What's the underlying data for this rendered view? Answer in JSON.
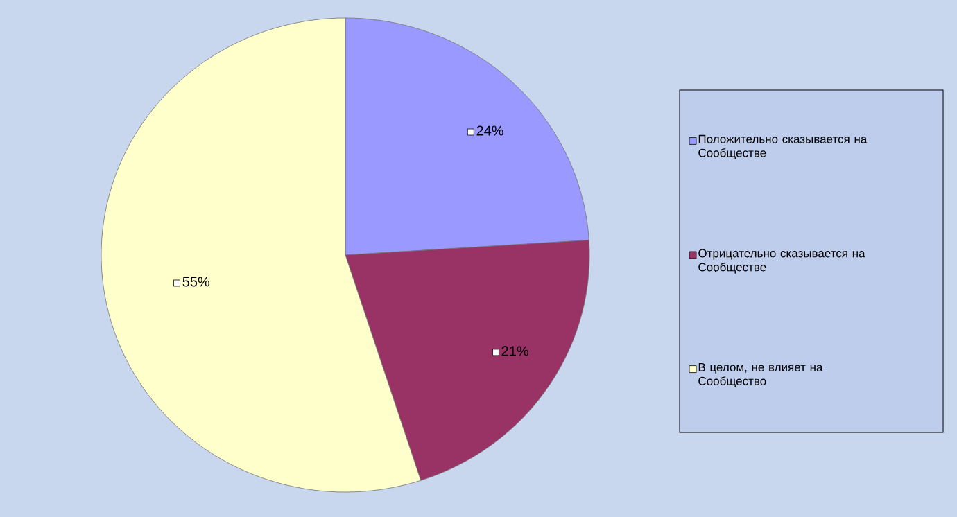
{
  "chart_data": {
    "type": "pie",
    "categories": [
      "Положительно сказывается на Сообществе",
      "Отрицательно сказывается на Сообществе",
      "В целом, не влияет на Сообщество"
    ],
    "values": [
      24,
      21,
      55
    ],
    "colors": [
      "#9999ff",
      "#993366",
      "#ffffcc"
    ],
    "value_labels": [
      "24%",
      "21%",
      "55%"
    ],
    "legend": "right"
  }
}
